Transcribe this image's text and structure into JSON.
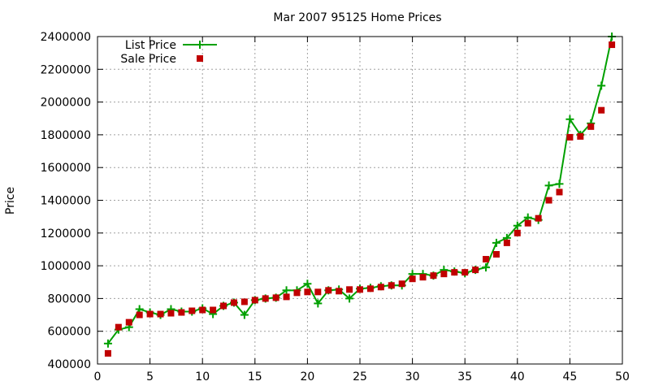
{
  "chart_data": {
    "type": "line",
    "title": "Mar 2007 95125 Home Prices",
    "xlabel": "",
    "ylabel": "Price",
    "xlim": [
      0,
      50
    ],
    "ylim": [
      400000,
      2400000
    ],
    "xticks": [
      0,
      5,
      10,
      15,
      20,
      25,
      30,
      35,
      40,
      45,
      50
    ],
    "yticks": [
      400000,
      600000,
      800000,
      1000000,
      1200000,
      1400000,
      1600000,
      1800000,
      2000000,
      2200000,
      2400000
    ],
    "grid": true,
    "legend": "top-left",
    "series": [
      {
        "name": "List Price",
        "style": "line+cross",
        "color": "#00a000",
        "x": [
          1,
          2,
          3,
          4,
          5,
          6,
          7,
          8,
          9,
          10,
          11,
          12,
          13,
          14,
          15,
          16,
          17,
          18,
          19,
          20,
          21,
          22,
          23,
          24,
          25,
          26,
          27,
          28,
          29,
          30,
          31,
          32,
          33,
          34,
          35,
          36,
          37,
          38,
          39,
          40,
          41,
          42,
          43,
          44,
          45,
          46,
          47,
          48,
          49
        ],
        "y": [
          525000,
          610000,
          625000,
          735000,
          715000,
          700000,
          735000,
          720000,
          720000,
          740000,
          705000,
          755000,
          775000,
          700000,
          790000,
          800000,
          805000,
          850000,
          850000,
          890000,
          770000,
          850000,
          855000,
          800000,
          860000,
          865000,
          875000,
          880000,
          880000,
          950000,
          950000,
          940000,
          975000,
          965000,
          955000,
          975000,
          990000,
          1140000,
          1170000,
          1245000,
          1295000,
          1280000,
          1490000,
          1500000,
          1895000,
          1800000,
          1870000,
          2100000,
          2400000
        ]
      },
      {
        "name": "Sale Price",
        "style": "square",
        "color": "#c00000",
        "x": [
          1,
          2,
          3,
          4,
          5,
          6,
          7,
          8,
          9,
          10,
          11,
          12,
          13,
          14,
          15,
          16,
          17,
          18,
          19,
          20,
          21,
          22,
          23,
          24,
          25,
          26,
          27,
          28,
          29,
          30,
          31,
          32,
          33,
          34,
          35,
          36,
          37,
          38,
          39,
          40,
          41,
          42,
          43,
          44,
          45,
          46,
          47,
          48,
          49
        ],
        "y": [
          465000,
          625000,
          655000,
          700000,
          705000,
          705000,
          710000,
          715000,
          725000,
          730000,
          730000,
          755000,
          775000,
          780000,
          790000,
          800000,
          805000,
          810000,
          835000,
          840000,
          840000,
          850000,
          845000,
          855000,
          855000,
          860000,
          870000,
          880000,
          890000,
          920000,
          930000,
          940000,
          950000,
          960000,
          960000,
          975000,
          1040000,
          1070000,
          1140000,
          1200000,
          1260000,
          1290000,
          1400000,
          1450000,
          1785000,
          1790000,
          1850000,
          1950000,
          2350000
        ]
      }
    ]
  }
}
